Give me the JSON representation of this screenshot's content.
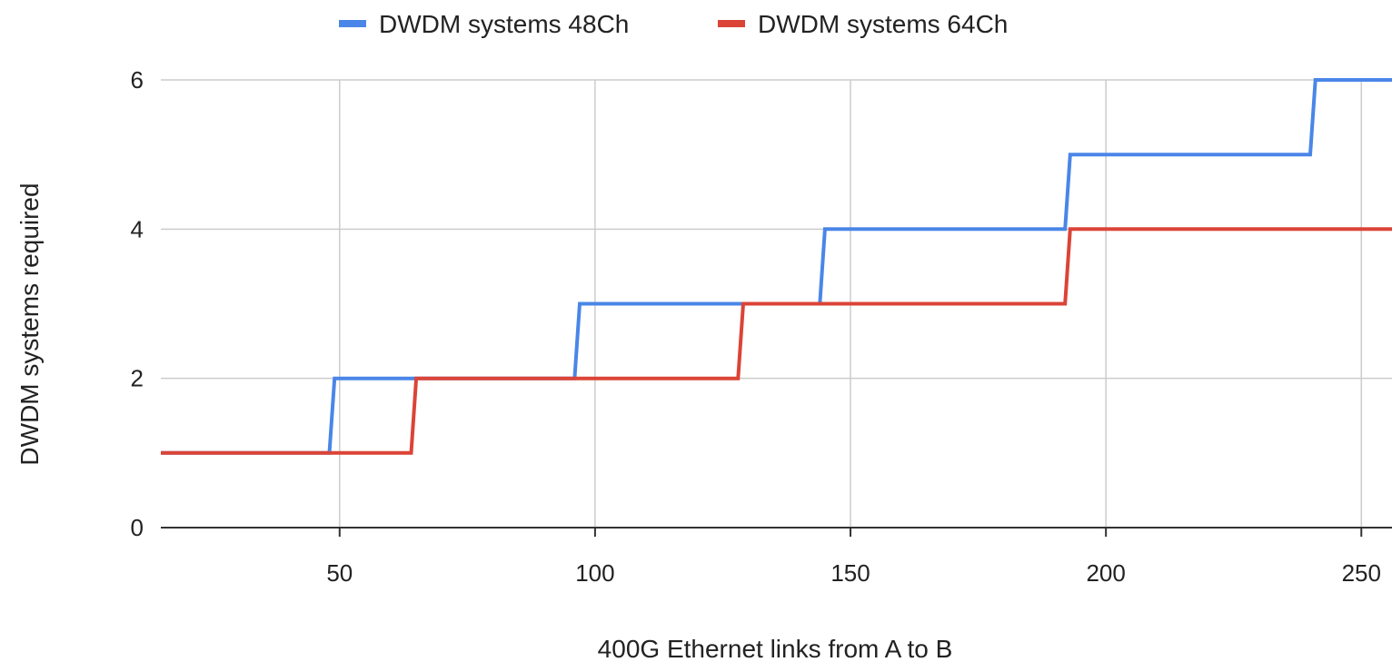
{
  "chart_data": {
    "type": "line",
    "line_style": "step",
    "xlabel": "400G Ethernet links from A to B",
    "ylabel": "DWDM systems required",
    "xlim": [
      15,
      256
    ],
    "ylim": [
      0,
      6
    ],
    "x_ticks": [
      50,
      100,
      150,
      200,
      250
    ],
    "x_tick_labels": [
      "50",
      "100",
      "150",
      "200",
      "250"
    ],
    "y_ticks": [
      0,
      2,
      4,
      6
    ],
    "y_tick_labels": [
      "0",
      "2",
      "4",
      "6"
    ],
    "grid": true,
    "legend_position": "top",
    "series": [
      {
        "name": "DWDM systems 48Ch",
        "color": "#4a86e8",
        "points": [
          [
            15,
            1
          ],
          [
            48,
            1
          ],
          [
            49,
            2
          ],
          [
            96,
            2
          ],
          [
            97,
            3
          ],
          [
            144,
            3
          ],
          [
            145,
            4
          ],
          [
            192,
            4
          ],
          [
            193,
            5
          ],
          [
            240,
            5
          ],
          [
            241,
            6
          ],
          [
            256,
            6
          ]
        ]
      },
      {
        "name": "DWDM systems 64Ch",
        "color": "#db4437",
        "points": [
          [
            15,
            1
          ],
          [
            64,
            1
          ],
          [
            65,
            2
          ],
          [
            128,
            2
          ],
          [
            129,
            3
          ],
          [
            192,
            3
          ],
          [
            193,
            4
          ],
          [
            256,
            4
          ]
        ]
      }
    ]
  }
}
